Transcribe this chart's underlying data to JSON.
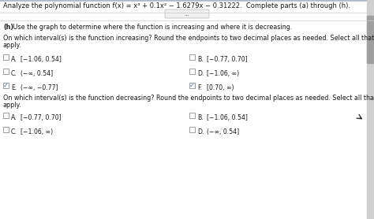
{
  "title_line": "Analyze the polynomial function f(x) = x³ + 0.1x² − 1.6279x − 0.31222.  Complete parts (a) through (h).",
  "part_h_bold": "(h)",
  "part_h_rest": " Use the graph to determine where the function is increasing and where it is decreasing.",
  "increasing_question_line1": "On which interval(s) is the function increasing? Round the endpoints to two decimal places as needed. Select all that",
  "increasing_question_line2": "apply.",
  "increasing_options": [
    {
      "letter": "A.",
      "text": "[−1.06, 0.54]",
      "checked": false,
      "col": 0
    },
    {
      "letter": "B.",
      "text": "[−0.77, 0.70]",
      "checked": false,
      "col": 1
    },
    {
      "letter": "C.",
      "text": "(−∞, 0.54]",
      "checked": false,
      "col": 0
    },
    {
      "letter": "D.",
      "text": "[−1.06, ∞)",
      "checked": false,
      "col": 1
    },
    {
      "letter": "E.",
      "text": "(−∞, −0.77]",
      "checked": true,
      "col": 0
    },
    {
      "letter": "F.",
      "text": "[0.70, ∞)",
      "checked": true,
      "col": 1
    }
  ],
  "decreasing_question_line1": "On which interval(s) is the function decreasing? Round the endpoints to two decimal places as needed. Select all that",
  "decreasing_question_line2": "apply.",
  "decreasing_options": [
    {
      "letter": "A.",
      "text": "[−0.77, 0.70]",
      "checked": false,
      "col": 0
    },
    {
      "letter": "B.",
      "text": "[−1.06, 0.54]",
      "checked": false,
      "col": 1
    },
    {
      "letter": "C.",
      "text": "[−1.06, ∞)",
      "checked": false,
      "col": 0
    },
    {
      "letter": "D.",
      "text": "(−∞, 0.54]",
      "checked": false,
      "col": 1
    }
  ],
  "bg_color": "#e8e8e8",
  "text_color": "#1a1a1a",
  "check_color": "#3a7abf",
  "fs_title": 6.0,
  "fs_body": 5.8,
  "fs_opt": 5.6,
  "fs_check": 6.0
}
